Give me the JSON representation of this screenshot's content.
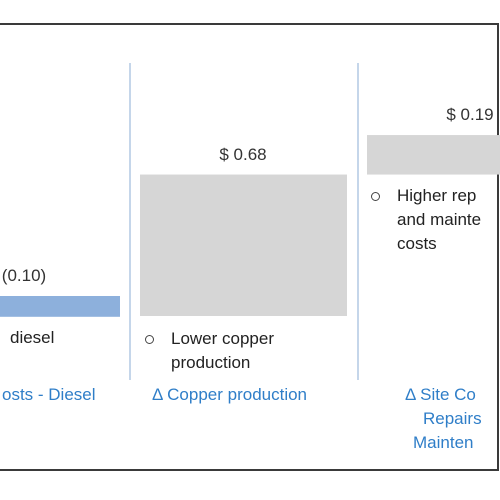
{
  "chart_data": {
    "type": "bar",
    "chart_kind": "waterfall",
    "categories": [
      "Δ Costs - Diesel",
      "Δ Copper production",
      "Δ Site Costs - Repairs and Maintenance"
    ],
    "category_label_lines": [
      [
        "osts - Diesel"
      ],
      [
        "Δ Copper production"
      ],
      [
        "Δ Site Co",
        "Repairs",
        "Mainten"
      ]
    ],
    "values": [
      -0.1,
      0.68,
      0.19
    ],
    "value_labels": [
      "(0.10)",
      "$ 0.68",
      "$ 0.19"
    ],
    "bullets": [
      [
        "diesel"
      ],
      [
        "Lower copper",
        "production"
      ],
      [
        "Higher rep",
        "and mainte",
        "costs"
      ]
    ],
    "colors": {
      "negative": "#8db0dc",
      "positive": "#d6d6d6",
      "category_text": "#2f7ec8",
      "divider": "#c5d6ea",
      "frame": "#3a3a3a"
    },
    "grid": false,
    "legend": "none"
  }
}
